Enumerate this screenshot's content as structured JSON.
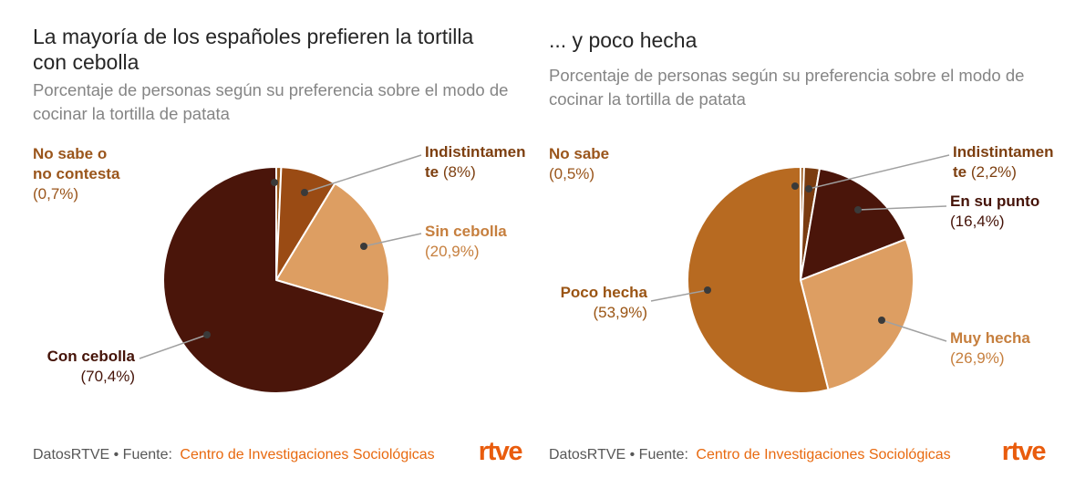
{
  "colors": {
    "background": "#ffffff",
    "title": "#262626",
    "subtitle": "#858585",
    "footer_text": "#575757",
    "source_link": "#e8690f",
    "logo": "#e95c0d",
    "callout_line": "#a0a0a0",
    "callout_dot": "#3a3a3a"
  },
  "panels": [
    {
      "title": "La mayoría de los españoles prefieren la tortilla con cebolla",
      "subtitle": "Porcentaje de personas según su preferencia sobre el modo de cocinar la tortilla de patata",
      "footer": {
        "prefix": "DatosRTVE • Fuente:",
        "source": "Centro de Investigaciones Sociológicas",
        "logo": "rtve"
      },
      "chart_data": {
        "type": "pie",
        "start_angle_deg": 0,
        "direction": "clockwise",
        "unit": "%",
        "slices": [
          {
            "id": "no-sabe-o-no-contesta",
            "label": "No sabe o no contesta",
            "value": 0.7,
            "pct_text": "(0,7%)",
            "color": "#9a5718",
            "label_color": "#9a551b"
          },
          {
            "id": "indistintamente",
            "label": "Indistintamente",
            "value": 8,
            "pct_text": "(8%)",
            "color": "#9a4b14",
            "label_color": "#7d3f10"
          },
          {
            "id": "sin-cebolla",
            "label": "Sin cebolla",
            "value": 20.9,
            "pct_text": "(20,9%)",
            "color": "#dd9e62",
            "label_color": "#c67f3e"
          },
          {
            "id": "con-cebolla",
            "label": "Con cebolla",
            "value": 70.4,
            "pct_text": "(70,4%)",
            "color": "#4a150a",
            "label_color": "#451308"
          }
        ]
      }
    },
    {
      "title": "... y poco hecha",
      "subtitle": "Porcentaje de personas según su preferencia sobre el modo de cocinar la tortilla de patata",
      "footer": {
        "prefix": "DatosRTVE • Fuente:",
        "source": "Centro de Investigaciones Sociológicas",
        "logo": "rtve"
      },
      "chart_data": {
        "type": "pie",
        "start_angle_deg": 0,
        "direction": "clockwise",
        "unit": "%",
        "slices": [
          {
            "id": "no-sabe",
            "label": "No sabe",
            "value": 0.5,
            "pct_text": "(0,5%)",
            "color": "#9a5718",
            "label_color": "#9a551b"
          },
          {
            "id": "indistintamente",
            "label": "Indistintamente",
            "value": 2.2,
            "pct_text": "(2,2%)",
            "color": "#7a3c10",
            "label_color": "#7d3f10"
          },
          {
            "id": "en-su-punto",
            "label": "En su punto",
            "value": 16.4,
            "pct_text": "(16,4%)",
            "color": "#4a150a",
            "label_color": "#451308"
          },
          {
            "id": "muy-hecha",
            "label": "Muy hecha",
            "value": 26.9,
            "pct_text": "(26,9%)",
            "color": "#dd9e62",
            "label_color": "#c67f3e"
          },
          {
            "id": "poco-hecha",
            "label": "Poco hecha",
            "value": 53.9,
            "pct_text": "(53,9%)",
            "color": "#b76a21",
            "label_color": "#9a5413"
          }
        ]
      }
    }
  ]
}
